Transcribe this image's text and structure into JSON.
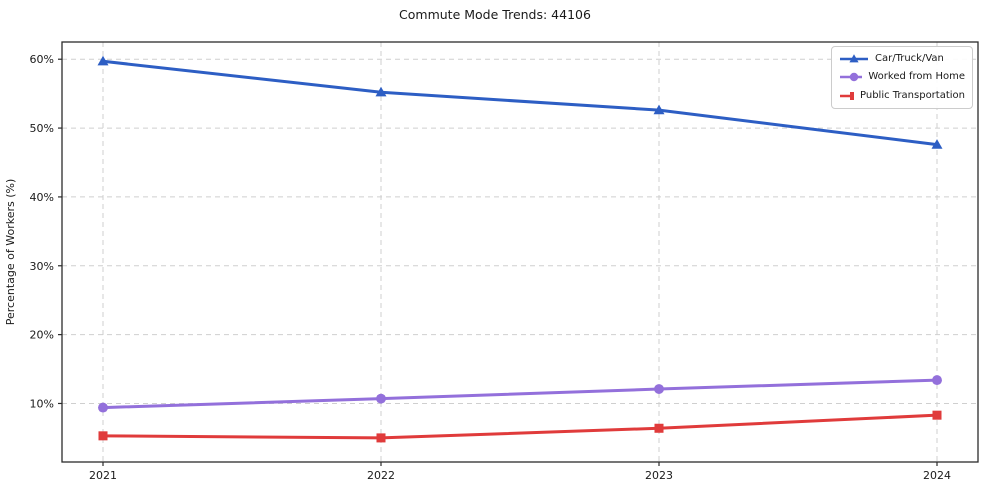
{
  "chart_data": {
    "type": "line",
    "title": "Commute Mode Trends: 44106",
    "xlabel": "",
    "ylabel": "Percentage of Workers (%)",
    "x_categories": [
      "2021",
      "2022",
      "2023",
      "2024"
    ],
    "series": [
      {
        "name": "Car/Truck/Van",
        "color": "#2d5ec4",
        "marker": "triangle",
        "values": [
          59.7,
          55.2,
          52.6,
          47.6
        ]
      },
      {
        "name": "Worked from Home",
        "color": "#9370db",
        "marker": "circle",
        "values": [
          9.4,
          10.7,
          12.1,
          13.4
        ]
      },
      {
        "name": "Public Transportation",
        "color": "#e03b3b",
        "marker": "square",
        "values": [
          5.3,
          5.0,
          6.4,
          8.3
        ]
      }
    ],
    "yticks": [
      10,
      20,
      30,
      40,
      50,
      60
    ],
    "ytick_suffix": "%",
    "ylim": [
      1.5,
      62.5
    ],
    "grid": true,
    "grid_style": "dashed",
    "legend_position": "upper right",
    "colors": {
      "grid": "#cfcfcf",
      "axis_border": "#2b2b2b",
      "tick": "#2b2b2b",
      "text": "#1a1a1a",
      "background": "#ffffff"
    }
  }
}
